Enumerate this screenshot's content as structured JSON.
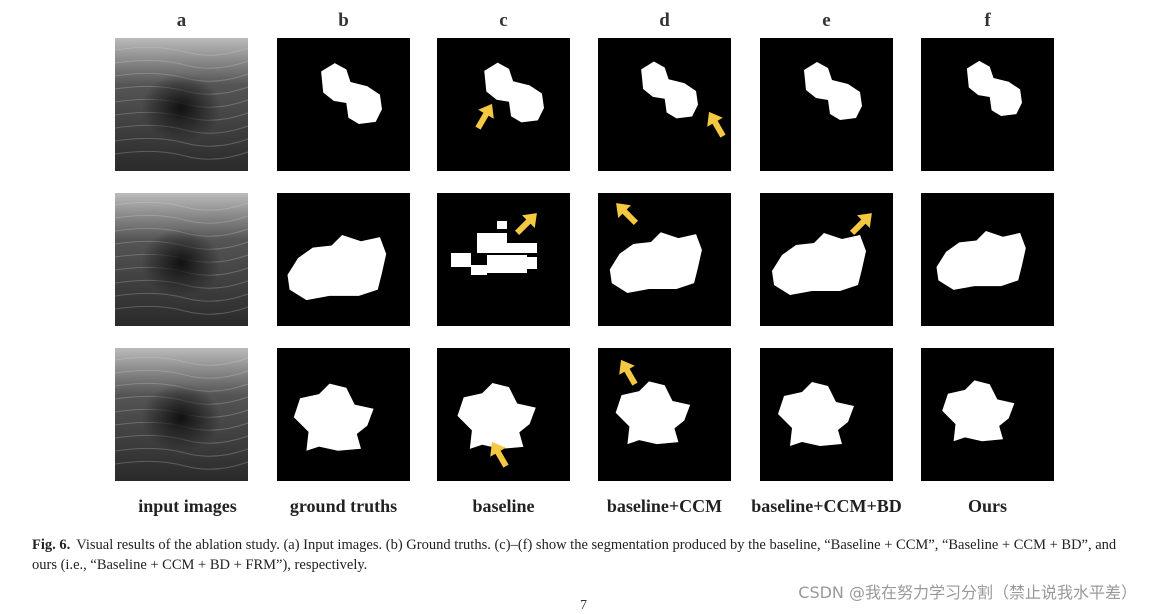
{
  "figure": {
    "column_labels": [
      "a",
      "b",
      "c",
      "d",
      "e",
      "f"
    ],
    "bottom_labels": [
      "input images",
      "ground truths",
      "baseline",
      "baseline+CCM",
      "baseline+CCM+BD",
      "Ours"
    ]
  },
  "caption": {
    "label": "Fig. 6.",
    "text": "Visual results of the ablation study. (a) Input images. (b) Ground truths. (c)–(f) show the segmentation produced by the baseline, “Baseline + CCM”, “Baseline + CCM + BD”, and ours (i.e., “Baseline + CCM + BD + FRM”), respectively."
  },
  "watermark": "CSDN @我在努力学习分割（禁止说我水平差）",
  "page_number": "7"
}
